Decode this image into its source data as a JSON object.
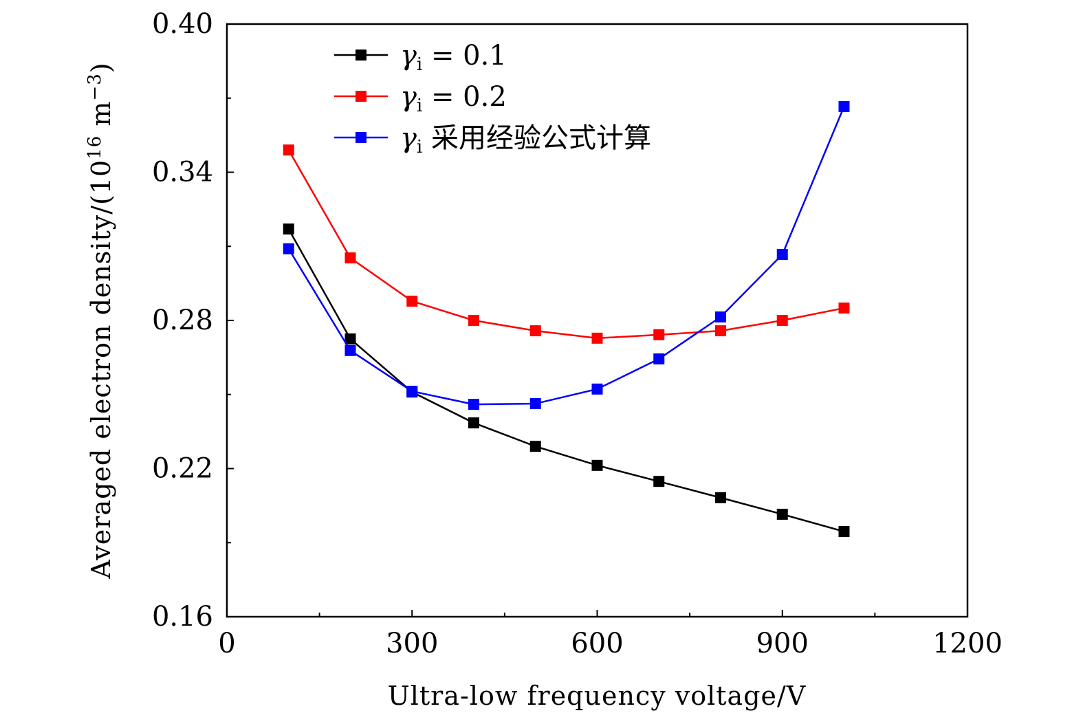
{
  "chart_data": {
    "type": "line",
    "title": "",
    "xlabel": "Ultra-low frequency voltage/V",
    "ylabel": {
      "main": "Averaged electron density/(10",
      "sup1": "16",
      "mid": " m",
      "sup2": "−3",
      "end": ")"
    },
    "xlim": [
      0,
      1200
    ],
    "ylim": [
      0.16,
      0.4
    ],
    "xticks": [
      0,
      300,
      600,
      900,
      1200
    ],
    "xtick_labels": [
      "0",
      "300",
      "600",
      "900",
      "1200"
    ],
    "yticks": [
      0.16,
      0.22,
      0.28,
      0.34,
      0.4
    ],
    "ytick_labels": [
      "0.16",
      "0.22",
      "0.28",
      "0.34",
      "0.40"
    ],
    "grid": false,
    "legend_position": "top-left",
    "x": [
      100,
      200,
      300,
      400,
      500,
      600,
      700,
      800,
      900,
      1000
    ],
    "series": [
      {
        "name": "γi = 0.1",
        "symbol": "γ",
        "sub": "i",
        "rest": " = 0.1",
        "color": "#000000",
        "values": [
          0.317,
          0.2725,
          0.251,
          0.2385,
          0.229,
          0.2213,
          0.2148,
          0.2082,
          0.2015,
          0.1945
        ]
      },
      {
        "name": "γi = 0.2",
        "symbol": "γ",
        "sub": "i",
        "rest": " = 0.2",
        "color": "#ff0000",
        "values": [
          0.349,
          0.3053,
          0.2878,
          0.28,
          0.2758,
          0.2728,
          0.2742,
          0.2758,
          0.28,
          0.285
        ]
      },
      {
        "name": "γi 采用经验公式计算",
        "symbol": "γ",
        "sub": "i",
        "rest": " 采用经验公式计算",
        "color": "#0000ff",
        "values": [
          0.309,
          0.2678,
          0.2513,
          0.246,
          0.2463,
          0.2522,
          0.2644,
          0.2814,
          0.3067,
          0.3666
        ]
      }
    ]
  }
}
